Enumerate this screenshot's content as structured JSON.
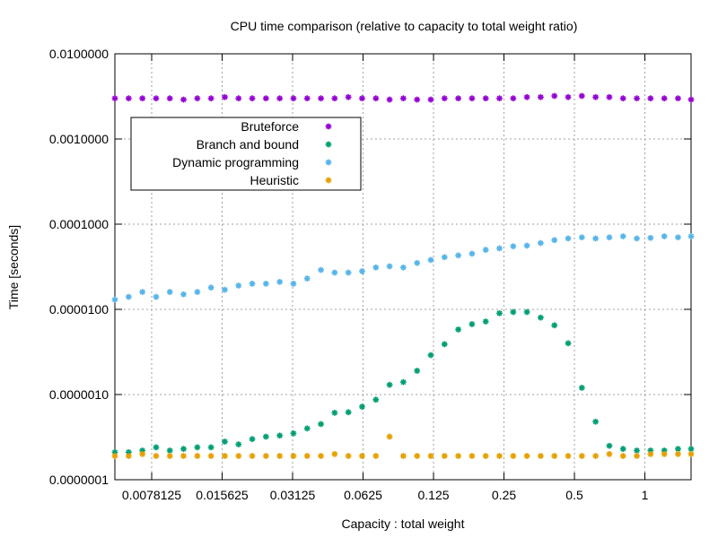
{
  "chart_data": {
    "type": "scatter",
    "title": "CPU time comparison (relative to capacity to total weight ratio)",
    "xlabel": "Capacity : total weight",
    "ylabel": "Time [seconds]",
    "xscale": "log2",
    "yscale": "log10",
    "xlim": [
      0.00544,
      1.575
    ],
    "ylim": [
      1e-07,
      0.01
    ],
    "xticks": [
      0.0078125,
      0.015625,
      0.03125,
      0.0625,
      0.125,
      0.25,
      0.5,
      1
    ],
    "xtick_labels": [
      "0.0078125",
      "0.015625",
      "0.03125",
      "0.0625",
      "0.125",
      "0.25",
      "0.5",
      "1"
    ],
    "yticks": [
      1e-07,
      1e-06,
      1e-05,
      0.0001,
      0.001,
      0.01
    ],
    "ytick_labels": [
      "0.0000001",
      "0.0000010",
      "0.0000100",
      "0.0001000",
      "0.0010000",
      "0.0100000"
    ],
    "grid": true,
    "legend_position": "top-left",
    "x": [
      0.00544,
      0.00623,
      0.00713,
      0.00816,
      0.00934,
      0.01069,
      0.01224,
      0.01401,
      0.01604,
      0.01836,
      0.02101,
      0.02405,
      0.02753,
      0.03151,
      0.03607,
      0.04129,
      0.04726,
      0.0541,
      0.06193,
      0.07089,
      0.08114,
      0.09288,
      0.10632,
      0.1217,
      0.1393,
      0.15945,
      0.18252,
      0.20893,
      0.23915,
      0.27375,
      0.31336,
      0.35869,
      0.41058,
      0.46998,
      0.53797,
      0.6158,
      0.70489,
      0.80687,
      0.92359,
      1.05721,
      1.21015,
      1.38522,
      1.575
    ],
    "series": [
      {
        "name": "Bruteforce",
        "color": "#9400d3",
        "marker": "star",
        "values": [
          0.003,
          0.003,
          0.003,
          0.003,
          0.003,
          0.0029,
          0.003,
          0.003,
          0.0031,
          0.003,
          0.003,
          0.003,
          0.003,
          0.003,
          0.003,
          0.003,
          0.003,
          0.0031,
          0.003,
          0.003,
          0.0029,
          0.003,
          0.0029,
          0.0029,
          0.003,
          0.003,
          0.003,
          0.003,
          0.003,
          0.003,
          0.0031,
          0.0031,
          0.0032,
          0.0031,
          0.0032,
          0.0031,
          0.0031,
          0.003,
          0.003,
          0.003,
          0.003,
          0.003,
          0.0029
        ]
      },
      {
        "name": "Branch and bound",
        "color": "#009e73",
        "marker": "star",
        "values": [
          2.1e-07,
          2.1e-07,
          2.2e-07,
          2.4e-07,
          2.2e-07,
          2.3e-07,
          2.4e-07,
          2.4e-07,
          2.8e-07,
          2.6e-07,
          3e-07,
          3.2e-07,
          3.3e-07,
          3.5e-07,
          4e-07,
          4.5e-07,
          6.1e-07,
          6.2e-07,
          7.2e-07,
          8.7e-07,
          1.3e-06,
          1.4e-06,
          1.9e-06,
          2.9e-06,
          3.9e-06,
          5.8e-06,
          6.7e-06,
          7.2e-06,
          9e-06,
          9.3e-06,
          9.3e-06,
          8e-06,
          6.5e-06,
          4e-06,
          1.2e-06,
          4.8e-07,
          2.5e-07,
          2.3e-07,
          2.2e-07,
          2.2e-07,
          2.2e-07,
          2.3e-07,
          2.3e-07
        ]
      },
      {
        "name": "Dynamic programming",
        "color": "#56b4e9",
        "marker": "star",
        "values": [
          1.3e-05,
          1.4e-05,
          1.6e-05,
          1.4e-05,
          1.6e-05,
          1.5e-05,
          1.6e-05,
          1.8e-05,
          1.7e-05,
          1.9e-05,
          2e-05,
          2e-05,
          2.1e-05,
          2e-05,
          2.3e-05,
          2.9e-05,
          2.7e-05,
          2.7e-05,
          2.8e-05,
          3.1e-05,
          3.2e-05,
          3.1e-05,
          3.5e-05,
          3.8e-05,
          4.1e-05,
          4.3e-05,
          4.5e-05,
          5e-05,
          5.2e-05,
          5.5e-05,
          5.6e-05,
          6e-05,
          6.5e-05,
          6.8e-05,
          7e-05,
          6.8e-05,
          7e-05,
          7.2e-05,
          6.8e-05,
          6.9e-05,
          7.2e-05,
          7e-05,
          7.2e-05
        ]
      },
      {
        "name": "Heuristic",
        "color": "#e69f00",
        "marker": "star",
        "values": [
          1.9e-07,
          1.9e-07,
          2e-07,
          1.9e-07,
          1.9e-07,
          1.9e-07,
          1.9e-07,
          1.9e-07,
          1.9e-07,
          1.9e-07,
          1.9e-07,
          1.9e-07,
          1.9e-07,
          1.9e-07,
          1.9e-07,
          1.9e-07,
          2e-07,
          1.9e-07,
          1.9e-07,
          1.9e-07,
          3.2e-07,
          1.9e-07,
          1.9e-07,
          1.9e-07,
          1.9e-07,
          1.9e-07,
          1.9e-07,
          1.9e-07,
          1.9e-07,
          1.9e-07,
          1.9e-07,
          1.9e-07,
          1.9e-07,
          1.9e-07,
          1.9e-07,
          1.9e-07,
          2e-07,
          1.9e-07,
          1.9e-07,
          2e-07,
          2e-07,
          2e-07,
          2e-07
        ]
      }
    ]
  }
}
